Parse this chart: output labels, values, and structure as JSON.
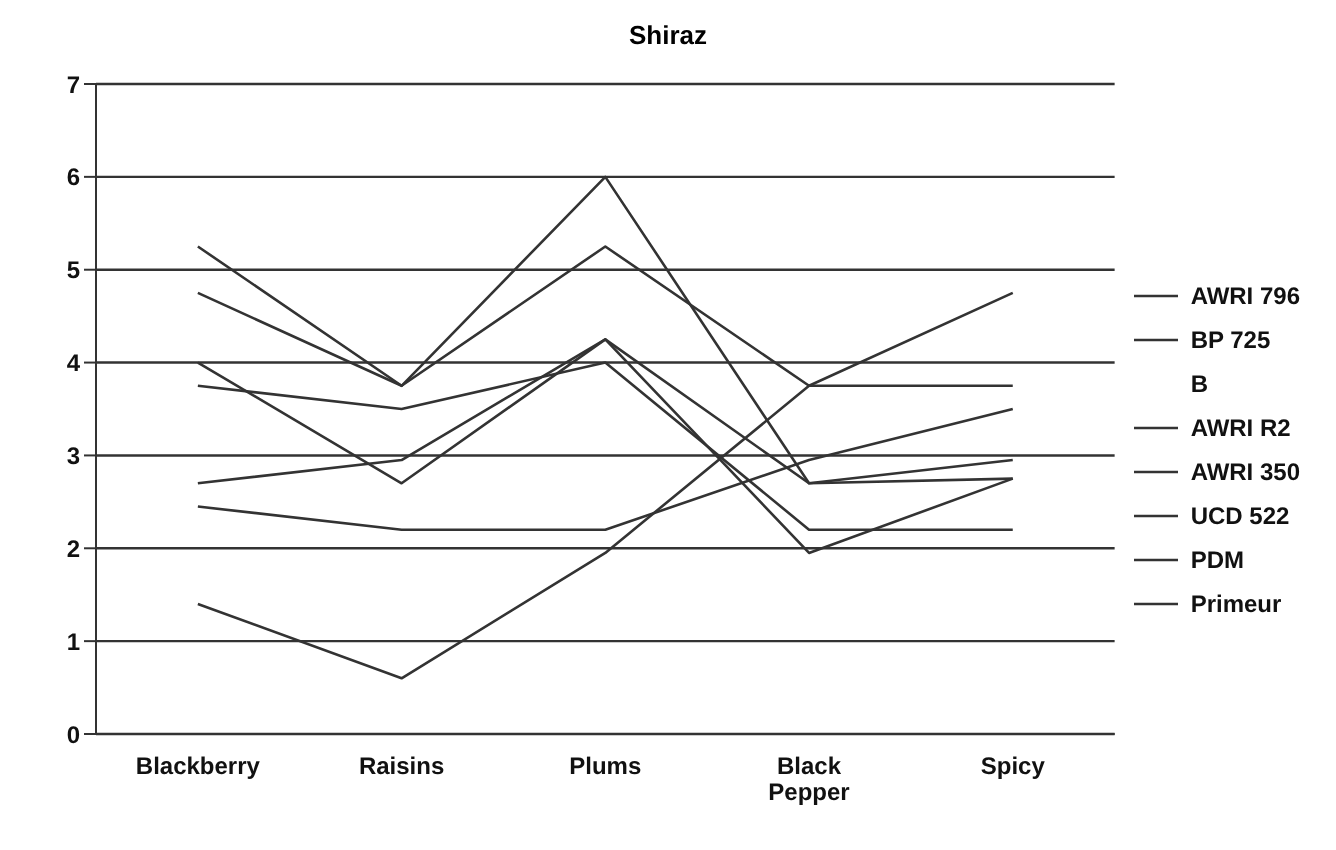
{
  "chart_data": {
    "type": "line",
    "title": "Shiraz",
    "categories": [
      "Blackberry",
      "Raisins",
      "Plums",
      "Black Pepper",
      "Spicy"
    ],
    "series": [
      {
        "name": "AWRI 796",
        "color": "#333333",
        "values": [
          5.25,
          3.75,
          6.0,
          2.7,
          2.75
        ]
      },
      {
        "name": "BP 725",
        "color": "#333333",
        "values": [
          4.75,
          3.75,
          5.25,
          3.75,
          3.75
        ]
      },
      {
        "name": "B",
        "values": [
          null,
          null,
          null,
          null,
          null
        ]
      },
      {
        "name": "AWRI R2",
        "color": "#333333",
        "values": [
          3.75,
          3.5,
          4.0,
          2.2,
          2.2
        ]
      },
      {
        "name": "AWRI 350",
        "color": "#333333",
        "values": [
          2.7,
          2.95,
          4.25,
          2.7,
          2.95
        ]
      },
      {
        "name": "UCD 522",
        "color": "#333333",
        "values": [
          4.0,
          2.7,
          4.25,
          1.95,
          2.75
        ]
      },
      {
        "name": "PDM",
        "color": "#333333",
        "values": [
          2.45,
          2.2,
          2.2,
          2.95,
          3.5
        ]
      },
      {
        "name": "Primeur",
        "color": "#333333",
        "values": [
          1.4,
          0.6,
          1.95,
          3.75,
          4.75
        ]
      }
    ],
    "ylim": [
      0,
      7
    ],
    "yticks": [
      0,
      1,
      2,
      3,
      4,
      5,
      6,
      7
    ],
    "grid": "y",
    "legend": "right",
    "marker": "none",
    "line_style": "solid"
  }
}
